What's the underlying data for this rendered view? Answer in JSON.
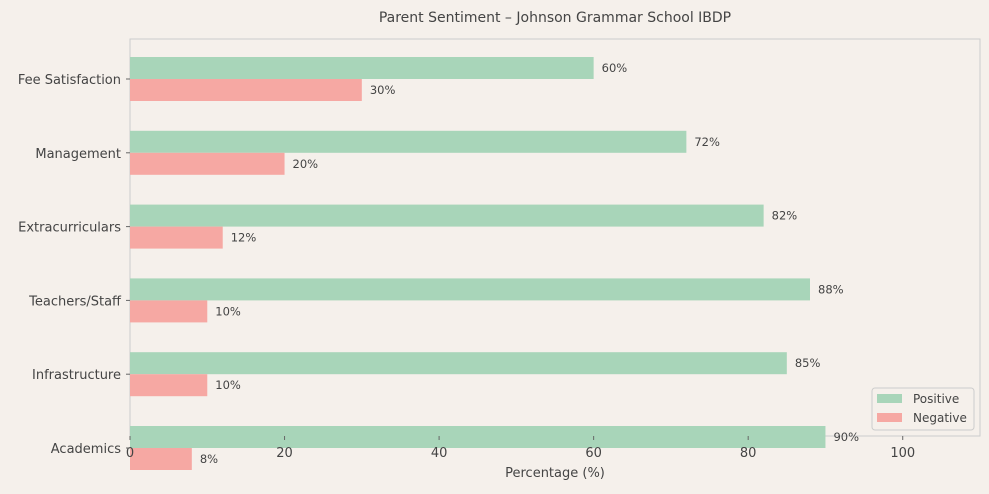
{
  "chart_data": {
    "type": "bar",
    "orientation": "horizontal",
    "title": "Parent Sentiment – Johnson Grammar School IBDP",
    "xlabel": "Percentage (%)",
    "ylabel": "",
    "xlim": [
      0,
      110
    ],
    "xticks": [
      0,
      20,
      40,
      60,
      80,
      100
    ],
    "grid": false,
    "legend_position": "bottom-right",
    "categories": [
      "Fee Satisfaction",
      "Management",
      "Extracurriculars",
      "Teachers/Staff",
      "Infrastructure",
      "Academics"
    ],
    "series": [
      {
        "name": "Positive",
        "color": "#a8d5b9",
        "values": [
          60,
          72,
          82,
          88,
          85,
          90
        ],
        "labels": [
          "60%",
          "72%",
          "82%",
          "88%",
          "85%",
          "90%"
        ]
      },
      {
        "name": "Negative",
        "color": "#f6a8a3",
        "values": [
          30,
          20,
          12,
          10,
          10,
          8
        ],
        "labels": [
          "30%",
          "20%",
          "12%",
          "10%",
          "10%",
          "8%"
        ]
      }
    ]
  }
}
